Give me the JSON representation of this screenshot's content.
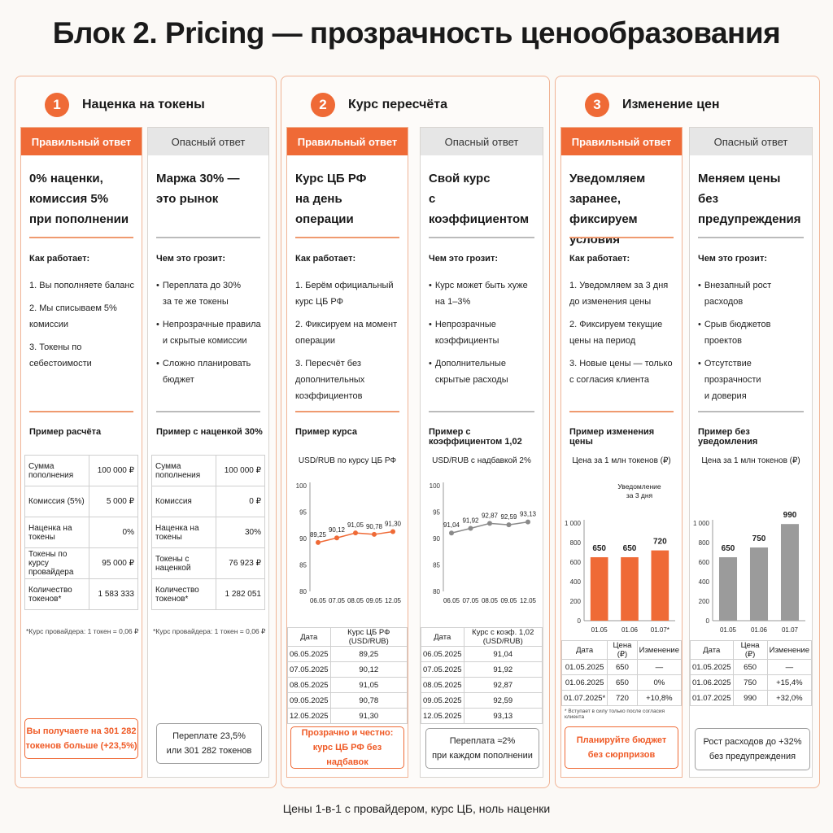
{
  "title": "Блок 2. Pricing — прозрачность ценообразования",
  "footer": "Цены 1-в-1 с провайдером, курс ЦБ, ноль наценки",
  "sections": [
    {
      "num": "1",
      "title": "Наценка на токены",
      "good": {
        "label": "Правильный ответ",
        "headline": "0% наценки,\nкомиссия 5%\nпри пополнении",
        "how_label": "Как работает:",
        "items": [
          "1. Вы пополняете баланс",
          "2. Мы списываем 5%\nкомиссии",
          "3. Токены по себестоимости"
        ],
        "example_label": "Пример расчёта",
        "table": [
          [
            "Сумма пополнения",
            "100 000 ₽"
          ],
          [
            "Комиссия (5%)",
            "5 000 ₽"
          ],
          [
            "Наценка на токены",
            "0%"
          ],
          [
            "Токены по курсу\nпровайдера",
            "95 000 ₽"
          ],
          [
            "Количество токенов*",
            "1 583 333"
          ]
        ],
        "note": "*Курс провайдера: 1 токен = 0,06 ₽",
        "callout": "Вы получаете на 301 282\nтокенов больше (+23,5%)"
      },
      "bad": {
        "label": "Опасный ответ",
        "headline": "Маржа 30% —\nэто рынок",
        "risk_label": "Чем это грозит:",
        "items": [
          "Переплата до 30%\nза те же токены",
          "Непрозрачные правила\nи скрытые комиссии",
          "Сложно планировать\nбюджет"
        ],
        "example_label": "Пример с наценкой 30%",
        "table": [
          [
            "Сумма пополнения",
            "100 000 ₽"
          ],
          [
            "Комиссия",
            "0 ₽"
          ],
          [
            "Наценка на токены",
            "30%"
          ],
          [
            "Токены с наценкой",
            "76 923 ₽"
          ],
          [
            "Количество токенов*",
            "1 282 051"
          ]
        ],
        "note": "*Курс провайдера: 1 токен = 0,06 ₽",
        "callout": "Переплате 23,5%\nили 301 282 токенов"
      }
    },
    {
      "num": "2",
      "title": "Курс пересчёта",
      "good": {
        "label": "Правильный ответ",
        "headline": "Курс ЦБ РФ\nна день операции",
        "how_label": "Как работает:",
        "items": [
          "1. Берём официальный\nкурс ЦБ РФ",
          "2. Фиксируем на момент\nоперации",
          "3. Пересчёт без\nдополнительных\nкоэффициентов"
        ],
        "example_label": "Пример курса",
        "chart_title": "USD/RUB по курсу ЦБ РФ",
        "table_header": [
          "Дата",
          "Курс ЦБ РФ (USD/RUB)"
        ],
        "table": [
          [
            "06.05.2025",
            "89,25"
          ],
          [
            "07.05.2025",
            "90,12"
          ],
          [
            "08.05.2025",
            "91,05"
          ],
          [
            "09.05.2025",
            "90,78"
          ],
          [
            "12.05.2025",
            "91,30"
          ]
        ],
        "callout": "Прозрачно и честно:\nкурс ЦБ РФ без надбавок"
      },
      "bad": {
        "label": "Опасный ответ",
        "headline": "Свой курс\nс коэффициентом",
        "risk_label": "Чем это грозит:",
        "items": [
          "Курс может быть хуже\nна 1–3%",
          "Непрозрачные\nкоэффициенты",
          "Дополнительные\nскрытые расходы"
        ],
        "example_label": "Пример с коэффициентом 1,02",
        "chart_title": "USD/RUB с надбавкой 2%",
        "table_header": [
          "Дата",
          "Курс с коэф. 1,02 (USD/RUB)"
        ],
        "table": [
          [
            "06.05.2025",
            "91,04"
          ],
          [
            "07.05.2025",
            "91,92"
          ],
          [
            "08.05.2025",
            "92,87"
          ],
          [
            "09.05.2025",
            "92,59"
          ],
          [
            "12.05.2025",
            "93,13"
          ]
        ],
        "callout": "Переплата ≈2%\nпри каждом пополнении"
      }
    },
    {
      "num": "3",
      "title": "Изменение цен",
      "good": {
        "label": "Правильный ответ",
        "headline": "Уведомляем заранее,\nфиксируем условия",
        "how_label": "Как работает:",
        "items": [
          "1. Уведомляем за 3 дня\nдо изменения цены",
          "2. Фиксируем текущие\nцены на период",
          "3. Новые цены — только\nс согласия клиента"
        ],
        "example_label": "Пример изменения цены",
        "chart_title": "Цена за 1 млн токенов (₽)",
        "annotation": "Уведомление\nза 3 дня",
        "table_header": [
          "Дата",
          "Цена (₽)",
          "Изменение"
        ],
        "table": [
          [
            "01.05.2025",
            "650",
            "—"
          ],
          [
            "01.06.2025",
            "650",
            "0%"
          ],
          [
            "01.07.2025*",
            "720",
            "+10,8%"
          ]
        ],
        "note": "* Вступает в силу только после согласия клиента",
        "callout": "Планируйте бюджет\nбез сюрпризов"
      },
      "bad": {
        "label": "Опасный ответ",
        "headline": "Меняем цены\nбез предупреждения",
        "risk_label": "Чем это грозит:",
        "items": [
          "Внезапный рост\nрасходов",
          "Срыв бюджетов\nпроектов",
          "Отсутствие прозрачности\nи доверия"
        ],
        "example_label": "Пример без уведомления",
        "chart_title": "Цена за 1 млн токенов (₽)",
        "table_header": [
          "Дата",
          "Цена (₽)",
          "Изменение"
        ],
        "table": [
          [
            "01.05.2025",
            "650",
            "—"
          ],
          [
            "01.06.2025",
            "750",
            "+15,4%"
          ],
          [
            "01.07.2025",
            "990",
            "+32,0%"
          ]
        ],
        "callout": "Рост расходов до +32%\nбез предупреждения"
      }
    }
  ],
  "chart_data": [
    {
      "type": "line",
      "x": [
        "06.05",
        "07.05",
        "08.05",
        "09.05",
        "12.05"
      ],
      "values": [
        89.25,
        90.12,
        91.05,
        90.78,
        91.3
      ],
      "labels": [
        "89,25",
        "90,12",
        "91,05",
        "90,78",
        "91,30"
      ],
      "title": "USD/RUB по курсу ЦБ РФ",
      "ylim": [
        80,
        100
      ],
      "yticks": [
        "80",
        "85",
        "90",
        "95",
        "100"
      ],
      "color": "#ef6a36"
    },
    {
      "type": "line",
      "x": [
        "06.05",
        "07.05",
        "08.05",
        "09.05",
        "12.05"
      ],
      "values": [
        91.04,
        91.92,
        92.87,
        92.59,
        93.13
      ],
      "labels": [
        "91,04",
        "91,92",
        "92,87",
        "92,59",
        "93,13"
      ],
      "title": "USD/RUB с надбавкой 2%",
      "ylim": [
        80,
        100
      ],
      "yticks": [
        "80",
        "85",
        "90",
        "95",
        "100"
      ],
      "color": "#8a8a8a"
    },
    {
      "type": "bar",
      "categories": [
        "01.05",
        "01.06",
        "01.07*"
      ],
      "values": [
        650,
        650,
        720
      ],
      "labels": [
        "650",
        "650",
        "720"
      ],
      "title": "Цена за 1 млн токенов (₽)",
      "ylim": [
        0,
        1000
      ],
      "yticks": [
        "0",
        "200",
        "400",
        "600",
        "800",
        "1 000"
      ],
      "color": "#ef6a36"
    },
    {
      "type": "bar",
      "categories": [
        "01.05",
        "01.06",
        "01.07"
      ],
      "values": [
        650,
        750,
        990
      ],
      "labels": [
        "650",
        "750",
        "990"
      ],
      "title": "Цена за 1 млн токенов (₽)",
      "ylim": [
        0,
        1000
      ],
      "yticks": [
        "0",
        "200",
        "400",
        "600",
        "800",
        "1 000"
      ],
      "color": "#9b9b9b"
    }
  ]
}
